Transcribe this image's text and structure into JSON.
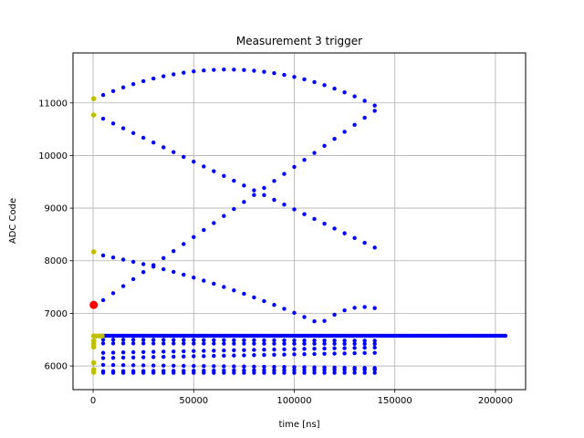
{
  "chart_data": {
    "type": "scatter",
    "title": "Measurement 3 trigger",
    "xlabel": "time [ns]",
    "ylabel": "ADC Code",
    "xlim": [
      -10000,
      215000
    ],
    "ylim": [
      5550,
      11950
    ],
    "xticks": [
      0,
      50000,
      100000,
      150000,
      200000
    ],
    "xtick_labels": [
      "0",
      "50000",
      "100000",
      "150000",
      "200000"
    ],
    "yticks": [
      6000,
      7000,
      8000,
      9000,
      10000,
      11000
    ],
    "ytick_labels": [
      "6000",
      "7000",
      "8000",
      "9000",
      "10000",
      "11000"
    ],
    "grid": true,
    "series": [
      {
        "color": "#0000ff",
        "curves": [
          {
            "x": [
              5000,
              140000
            ],
            "y": [
              11150,
              10950
            ],
            "peak": 11630,
            "sample_step": 5000
          },
          {
            "x": [
              5000,
              140000
            ],
            "y": [
              10700,
              8250
            ],
            "sample_step": 5000
          },
          {
            "x": [
              5000,
              140000
            ],
            "y": [
              7250,
              10850
            ],
            "sample_step": 5000
          },
          {
            "x": [
              5000,
              140000
            ],
            "y": [
              8100,
              7100
            ],
            "valley": 6800,
            "sample_step": 5000
          },
          {
            "x": [
              5000,
              205000
            ],
            "y": [
              6575,
              6575
            ],
            "sample_step": 1000
          },
          {
            "x": [
              5000,
              140000
            ],
            "y": [
              6500,
              6480
            ],
            "sample_step": 5000
          },
          {
            "x": [
              5000,
              140000
            ],
            "y": [
              6430,
              6420
            ],
            "sample_step": 5000
          },
          {
            "x": [
              5000,
              140000
            ],
            "y": [
              6250,
              6350
            ],
            "sample_step": 5000
          },
          {
            "x": [
              5000,
              140000
            ],
            "y": [
              6150,
              6250
            ],
            "sample_step": 5000
          },
          {
            "x": [
              5000,
              140000
            ],
            "y": [
              6020,
              5960
            ],
            "sample_step": 5000
          },
          {
            "x": [
              5000,
              140000
            ],
            "y": [
              5900,
              5930
            ],
            "sample_step": 5000
          },
          {
            "x": [
              5000,
              140000
            ],
            "y": [
              5870,
              5870
            ],
            "sample_step": 5000
          }
        ]
      },
      {
        "color": "#bfbf00",
        "points": [
          [
            300,
            11080
          ],
          [
            300,
            10770
          ],
          [
            300,
            8170
          ],
          [
            300,
            6570
          ],
          [
            1500,
            6570
          ],
          [
            3000,
            6570
          ],
          [
            4500,
            6570
          ],
          [
            300,
            6480
          ],
          [
            300,
            6420
          ],
          [
            300,
            6360
          ],
          [
            300,
            6060
          ],
          [
            300,
            5930
          ],
          [
            300,
            5880
          ]
        ]
      },
      {
        "color": "#ff0000",
        "points": [
          [
            300,
            7160
          ]
        ]
      }
    ]
  }
}
